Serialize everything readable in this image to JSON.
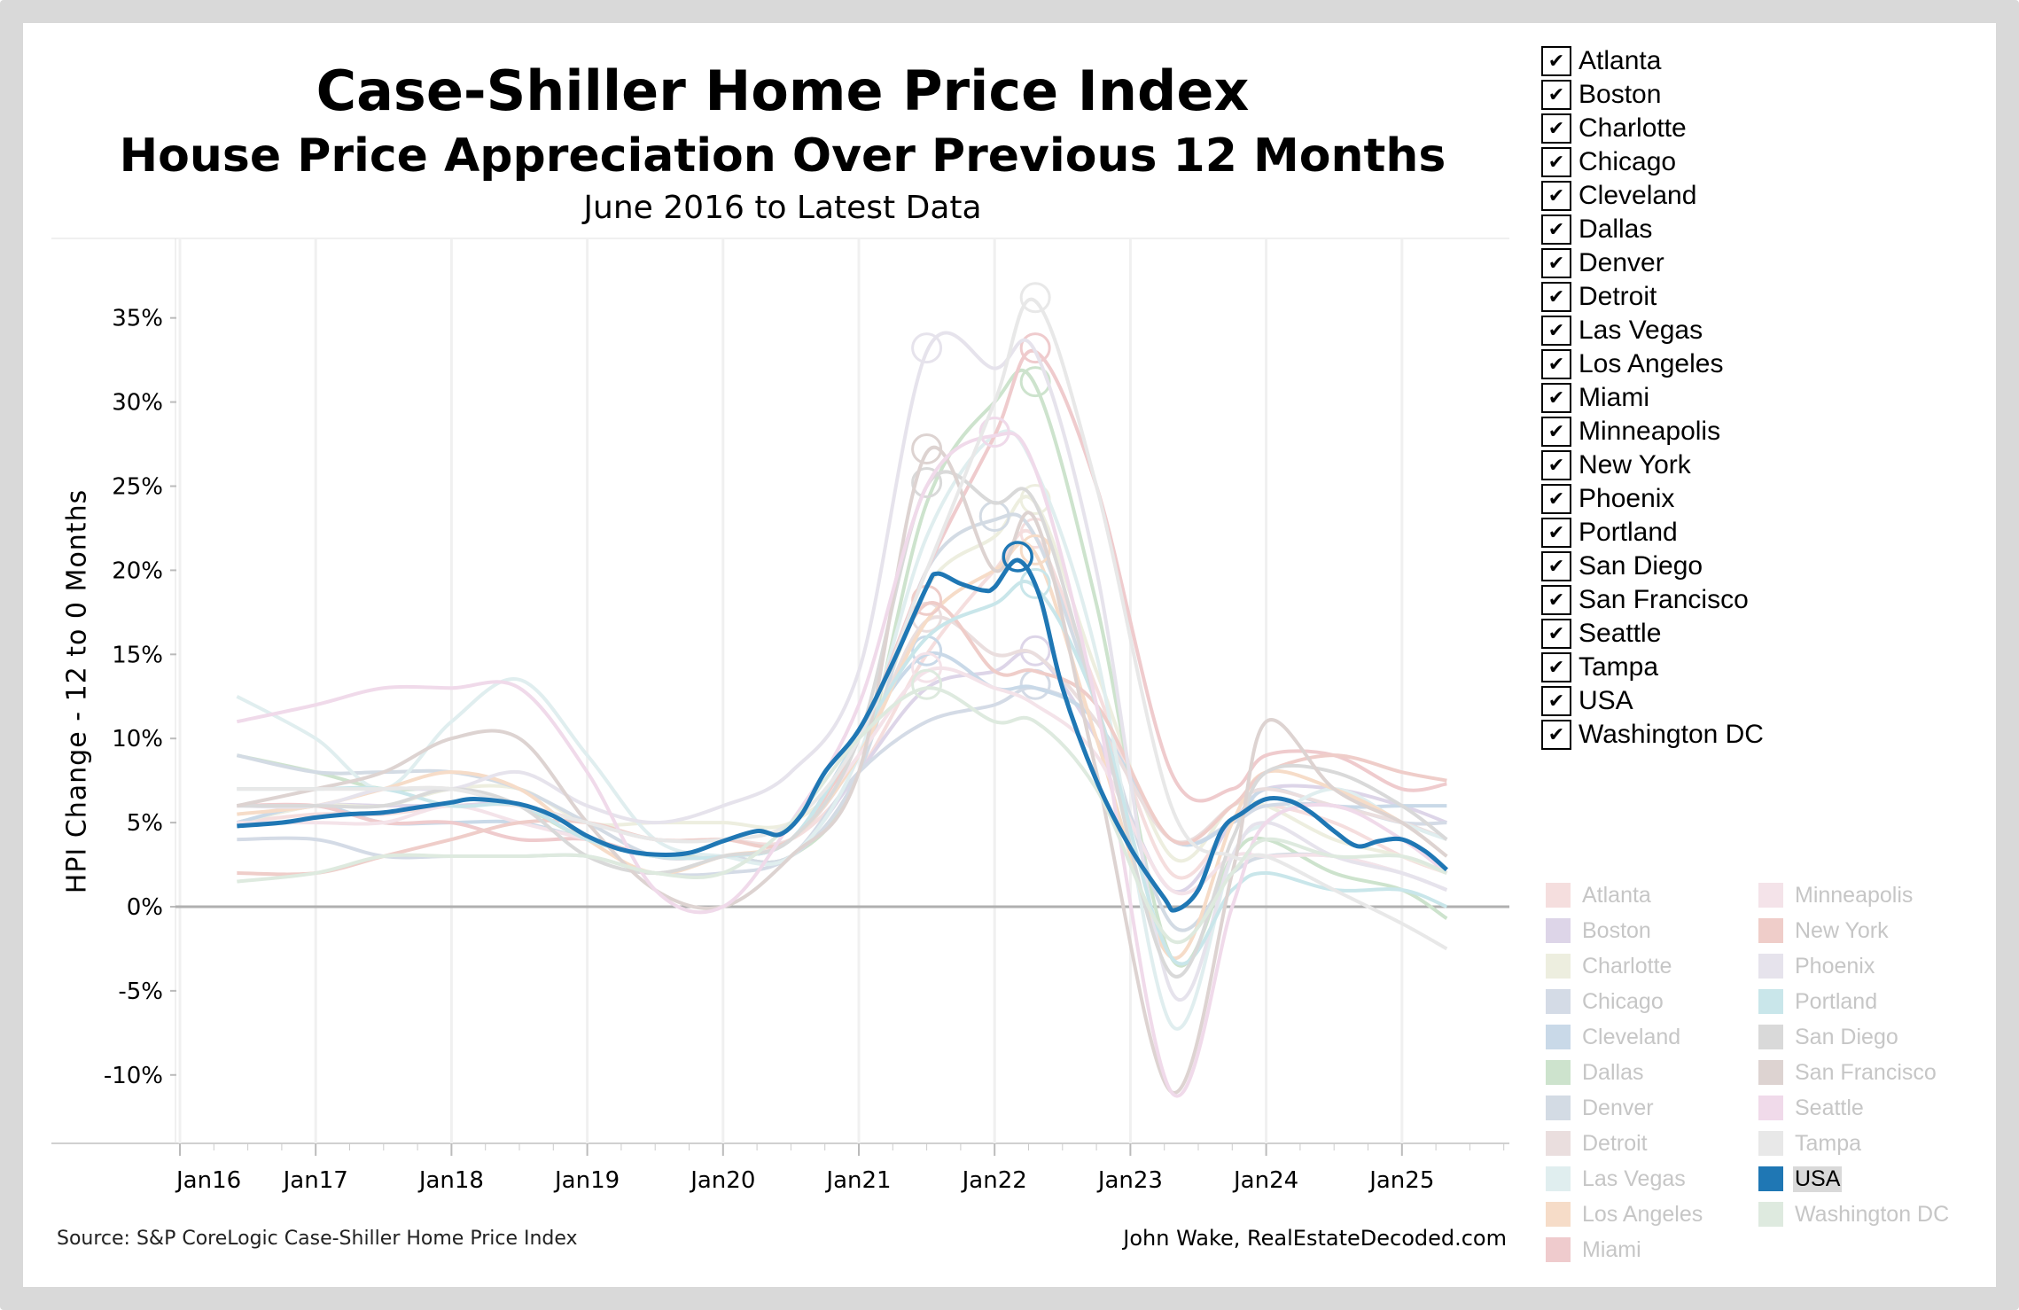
{
  "header": {
    "title": "Case-Shiller Home Price Index",
    "subtitle": "House Price Appreciation Over Previous 12 Months",
    "period": "June 2016 to Latest Data"
  },
  "footer": {
    "source": "Source: S&P CoreLogic Case-Shiller Home Price Index",
    "author": "John Wake, RealEstateDecoded.com"
  },
  "filter": {
    "check_mark": "✔",
    "items": [
      "Atlanta",
      "Boston",
      "Charlotte",
      "Chicago",
      "Cleveland",
      "Dallas",
      "Denver",
      "Detroit",
      "Las Vegas",
      "Los Angeles",
      "Miami",
      "Minneapolis",
      "New York",
      "Phoenix",
      "Portland",
      "San Diego",
      "San Francisco",
      "Seattle",
      "Tampa",
      "USA",
      "Washington DC"
    ]
  },
  "chart_data": {
    "type": "line",
    "title": "Case-Shiller Home Price Index",
    "xlabel": "",
    "ylabel": "HPI Change - 12 to 0 Months",
    "ylim": [
      -14,
      39.7
    ],
    "xlim": [
      2015.6,
      2025.8
    ],
    "yticks": [
      35,
      30,
      25,
      20,
      15,
      10,
      5,
      0,
      -5,
      -10
    ],
    "ytick_labels": [
      "35%",
      "30%",
      "25%",
      "20%",
      "15%",
      "10%",
      "5%",
      "0%",
      "-5%",
      "-10%"
    ],
    "xticks": [
      2016,
      2017,
      2018,
      2019,
      2020,
      2021,
      2022,
      2023,
      2024,
      2025
    ],
    "xtick_labels": [
      "Jan16",
      "Jan17",
      "Jan18",
      "Jan19",
      "Jan20",
      "Jan21",
      "Jan22",
      "Jan23",
      "Jan24",
      "Jan25"
    ],
    "grid": "vertical",
    "highlight": "USA",
    "legend_position": "right",
    "x": [
      2016.42,
      2017,
      2017.5,
      2018,
      2018.5,
      2019,
      2019.5,
      2020,
      2020.5,
      2021,
      2021.5,
      2022,
      2022.3,
      2022.75,
      2023.3,
      2023.75,
      2024,
      2024.5,
      2025,
      2025.33
    ],
    "series": [
      {
        "name": "Atlanta",
        "color": "#f5dede",
        "values": [
          5,
          5.5,
          5.5,
          6,
          6,
          5,
          4,
          4,
          4,
          8,
          15,
          20,
          22,
          13,
          2,
          5,
          6,
          5,
          3,
          2
        ]
      },
      {
        "name": "Boston",
        "color": "#ddd5e8",
        "values": [
          5,
          6,
          6,
          6,
          6,
          4,
          3,
          3,
          3,
          8,
          13,
          14,
          15,
          10,
          1,
          5,
          7,
          7,
          6,
          5
        ]
      },
      {
        "name": "Charlotte",
        "color": "#edeedf",
        "values": [
          5,
          6,
          6,
          7,
          7,
          5,
          5,
          5,
          5,
          9,
          19,
          22,
          24,
          14,
          3,
          6,
          6,
          4,
          3,
          2
        ]
      },
      {
        "name": "Chicago",
        "color": "#d4dbe6",
        "values": [
          4,
          4,
          3,
          3,
          3,
          3,
          2,
          2,
          3,
          8,
          11,
          12,
          13,
          11,
          4,
          5,
          6,
          6,
          5,
          5
        ]
      },
      {
        "name": "Cleveland",
        "color": "#c9d9e8",
        "values": [
          5,
          6,
          5,
          5,
          5,
          4,
          3,
          3,
          4,
          10,
          15,
          13,
          13,
          11,
          4,
          5,
          7,
          6,
          6,
          6
        ]
      },
      {
        "name": "Dallas",
        "color": "#cde3cd",
        "values": [
          9,
          8,
          7,
          7,
          6,
          4,
          3,
          3,
          3,
          8,
          24,
          30,
          31,
          18,
          -3,
          3,
          4,
          2,
          1,
          -0.7
        ]
      },
      {
        "name": "Denver",
        "color": "#d3dbe4",
        "values": [
          9,
          8,
          8,
          8,
          7,
          5,
          3,
          3,
          3,
          8,
          20,
          23,
          22,
          12,
          -1,
          2,
          3,
          3,
          2,
          1
        ]
      },
      {
        "name": "Detroit",
        "color": "#eadede",
        "values": [
          7,
          7,
          7,
          7,
          6,
          5,
          4,
          4,
          4,
          9,
          17,
          15,
          15,
          11,
          4,
          6,
          7,
          6,
          5,
          4
        ]
      },
      {
        "name": "Las Vegas",
        "color": "#e0eeef",
        "values": [
          12.5,
          10,
          7,
          11,
          13.5,
          9,
          4,
          3,
          3,
          9,
          22,
          28,
          26,
          15,
          -7,
          3,
          5,
          7,
          5,
          4
        ]
      },
      {
        "name": "Los Angeles",
        "color": "#f6dcc8",
        "values": [
          5.5,
          6,
          7,
          8,
          7,
          4,
          2,
          3,
          4,
          9,
          17,
          20,
          21,
          10,
          -3,
          5,
          8,
          7,
          5,
          3
        ]
      },
      {
        "name": "Miami",
        "color": "#efcbcd",
        "values": [
          6,
          6,
          5,
          5,
          4,
          4,
          3,
          3,
          4,
          10,
          20,
          28,
          33,
          25,
          8,
          7,
          9,
          9,
          7,
          7.3
        ]
      },
      {
        "name": "Minneapolis",
        "color": "#f4e3e9",
        "values": [
          5,
          5,
          5,
          6,
          5,
          4,
          3,
          3,
          4,
          9,
          14,
          13,
          12,
          9,
          1,
          3,
          3,
          3,
          2,
          1
        ]
      },
      {
        "name": "New York",
        "color": "#efcdc9",
        "values": [
          2,
          2,
          3,
          4,
          5,
          5,
          4,
          4,
          4,
          10,
          18,
          14,
          14,
          12,
          4,
          6,
          8,
          9,
          8,
          7.5
        ]
      },
      {
        "name": "Phoenix",
        "color": "#e6e3ec",
        "values": [
          6,
          6,
          7,
          7,
          8,
          6,
          5,
          6,
          8,
          14,
          33,
          32,
          33,
          20,
          -5,
          3,
          5,
          3,
          2,
          1
        ]
      },
      {
        "name": "Portland",
        "color": "#c9e6ea",
        "values": [
          7,
          7,
          7,
          6,
          6,
          4,
          3,
          3,
          4,
          10,
          16,
          18,
          19,
          12,
          -3,
          1,
          2,
          1,
          1,
          0
        ]
      },
      {
        "name": "San Diego",
        "color": "#d9d9d9",
        "values": [
          6,
          6,
          6,
          7,
          6,
          3,
          2,
          3,
          4,
          10,
          25,
          24,
          24,
          12,
          -4,
          4,
          8,
          8,
          6,
          4
        ]
      },
      {
        "name": "San Francisco",
        "color": "#ddd3d1",
        "values": [
          6,
          7,
          8,
          10,
          10,
          5,
          1,
          0,
          3,
          8,
          27,
          20,
          23,
          8,
          -11,
          2,
          11,
          7,
          5,
          3
        ]
      },
      {
        "name": "Seattle",
        "color": "#f0daea",
        "values": [
          11,
          12,
          13,
          13,
          13,
          8,
          1,
          0,
          5,
          12,
          25,
          28,
          26,
          12,
          -11,
          0,
          5,
          6,
          4,
          2
        ]
      },
      {
        "name": "Tampa",
        "color": "#e8e8e8",
        "values": [
          7,
          7,
          7,
          7,
          6,
          5,
          4,
          4,
          5,
          10,
          20,
          30,
          36,
          25,
          6,
          3,
          3,
          1,
          -1,
          -2.5
        ]
      },
      {
        "name": "Washington DC",
        "color": "#deeadf",
        "values": [
          1.5,
          2,
          3,
          3,
          3,
          3,
          2,
          2,
          5,
          10,
          13,
          11,
          11,
          7,
          -2,
          2,
          4,
          3,
          3,
          2
        ]
      }
    ],
    "usa": {
      "name": "USA",
      "color": "#1f77b4",
      "x": [
        2016.42,
        2016.75,
        2017,
        2017.25,
        2017.5,
        2017.75,
        2018,
        2018.17,
        2018.5,
        2018.75,
        2019,
        2019.25,
        2019.5,
        2019.75,
        2020,
        2020.25,
        2020.42,
        2020.58,
        2020.75,
        2021,
        2021.25,
        2021.5,
        2021.58,
        2021.75,
        2021.92,
        2022,
        2022.17,
        2022.33,
        2022.5,
        2022.75,
        2023,
        2023.25,
        2023.33,
        2023.5,
        2023.67,
        2023.83,
        2024,
        2024.17,
        2024.33,
        2024.5,
        2024.67,
        2024.83,
        2025,
        2025.17,
        2025.33
      ],
      "values": [
        4.8,
        5.0,
        5.3,
        5.5,
        5.6,
        5.9,
        6.2,
        6.4,
        6.1,
        5.4,
        4.2,
        3.4,
        3.1,
        3.2,
        3.9,
        4.5,
        4.3,
        5.5,
        8.0,
        10.5,
        14.5,
        19.0,
        19.8,
        19.2,
        18.8,
        19.0,
        20.6,
        18.5,
        13.0,
        7.5,
        3.5,
        0.5,
        -0.2,
        1.0,
        4.5,
        5.6,
        6.4,
        6.3,
        5.6,
        4.5,
        3.6,
        3.9,
        4.0,
        3.3,
        2.2
      ]
    }
  }
}
